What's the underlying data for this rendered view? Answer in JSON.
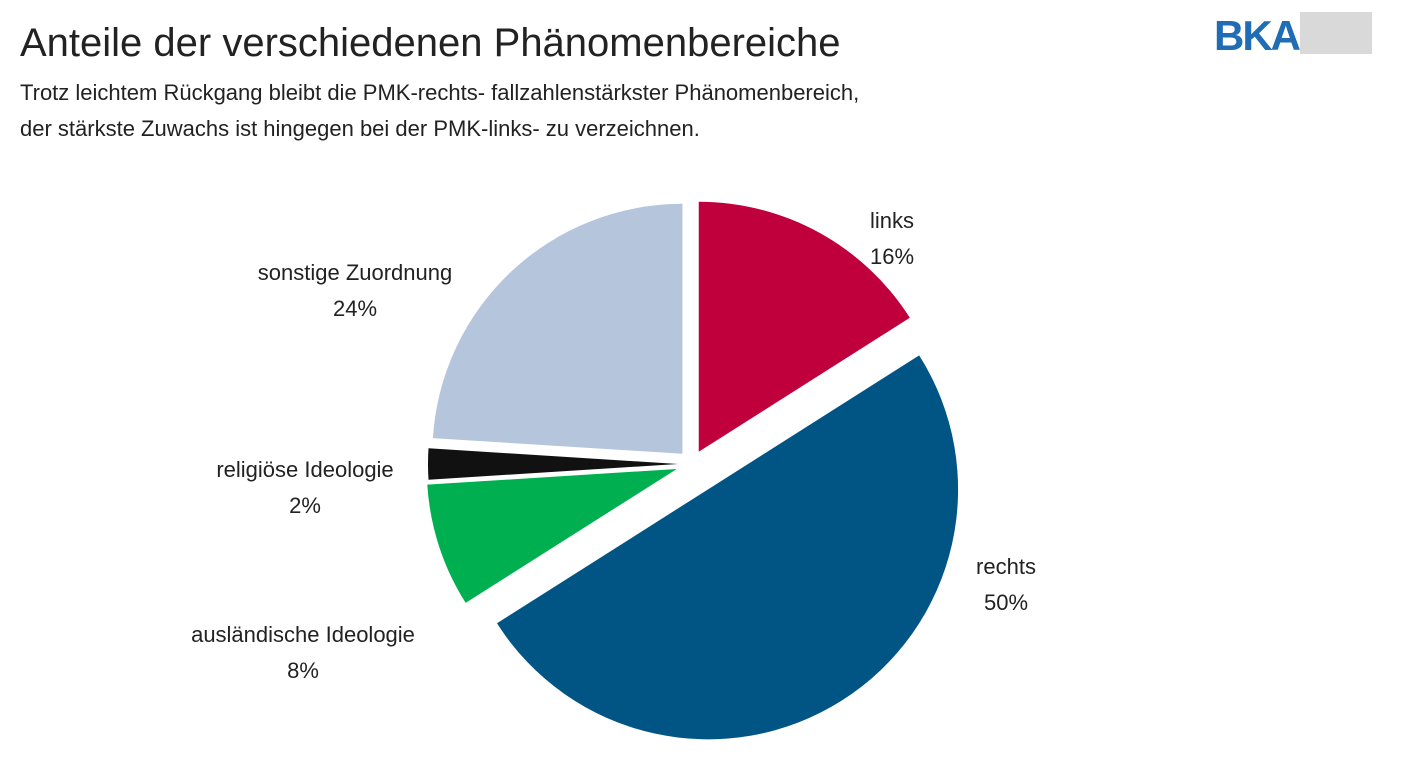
{
  "chart_data": {
    "type": "pie",
    "title": "Anteile der verschiedenen Phänomenbereiche",
    "subtitle": [
      "Trotz leichtem Rückgang bleibt die PMK-rechts- fallzahlenstärkster Phänomenbereich,",
      "der stärkste Zuwachs ist hingegen bei der PMK-links- zu verzeichnen."
    ],
    "logo": "BKA",
    "categories": [
      "links",
      "rechts",
      "ausländische Ideologie",
      "religiöse Ideologie",
      "sonstige Zuordnung"
    ],
    "values": [
      16,
      50,
      8,
      2,
      24
    ],
    "value_labels": [
      "16%",
      "50%",
      "8%",
      "2%",
      "24%"
    ],
    "colors": [
      "#c0003c",
      "#005585",
      "#00b050",
      "#111111",
      "#b4c5dc"
    ]
  }
}
